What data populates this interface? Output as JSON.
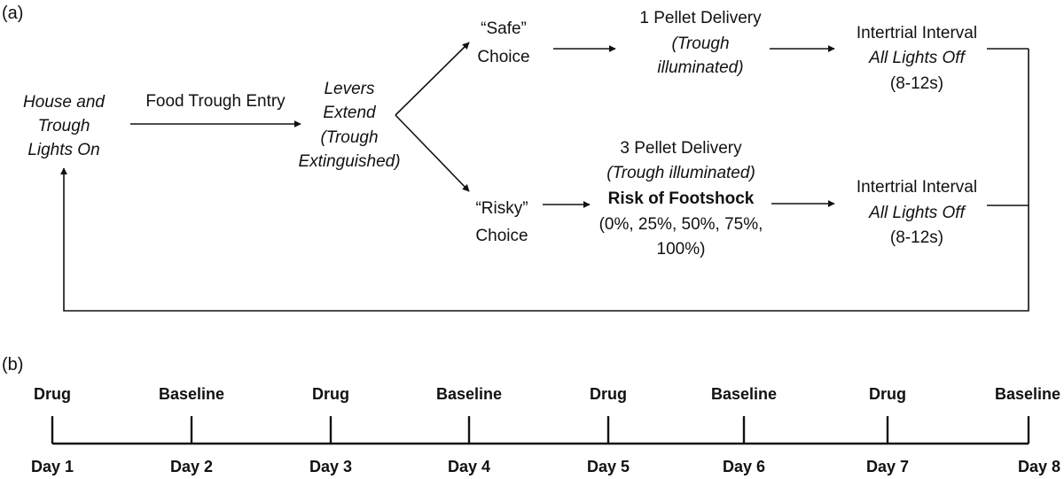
{
  "panel_a": {
    "label": "(a)",
    "start": [
      "House and",
      "Trough",
      "Lights On"
    ],
    "trough_entry": "Food Trough Entry",
    "levers": [
      "Levers",
      "Extend",
      "(Trough",
      "Extinguished)"
    ],
    "safe_choice": [
      "“Safe”",
      "Choice"
    ],
    "risky_choice": [
      "“Risky”",
      "Choice"
    ],
    "safe_outcome": [
      "1 Pellet Delivery",
      "(Trough",
      "illuminated)"
    ],
    "risky_outcome": [
      "3 Pellet Delivery",
      "(Trough illuminated)",
      "Risk of Footshock",
      "(0%, 25%, 50%, 75%,",
      "100%)"
    ],
    "iti_safe": [
      "Intertrial Interval",
      "All Lights Off",
      "(8-12s)"
    ],
    "iti_risky": [
      "Intertrial Interval",
      "All Lights Off",
      "(8-12s)"
    ]
  },
  "panel_b": {
    "label": "(b)",
    "days": [
      {
        "type": "Drug",
        "day": "Day 1"
      },
      {
        "type": "Baseline",
        "day": "Day 2"
      },
      {
        "type": "Drug",
        "day": "Day 3"
      },
      {
        "type": "Baseline",
        "day": "Day 4"
      },
      {
        "type": "Drug",
        "day": "Day 5"
      },
      {
        "type": "Baseline",
        "day": "Day 6"
      },
      {
        "type": "Drug",
        "day": "Day 7"
      },
      {
        "type": "Baseline",
        "day": "Day 8"
      }
    ]
  }
}
